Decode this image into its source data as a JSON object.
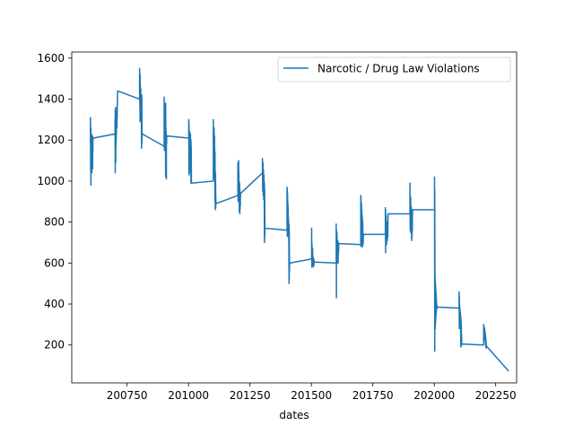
{
  "chart_data": {
    "type": "line",
    "title": "",
    "xlabel": "dates",
    "ylabel": "",
    "xlim": [
      200525,
      202335
    ],
    "ylim": [
      15,
      1630
    ],
    "xticks": [
      200750,
      201000,
      201250,
      201500,
      201750,
      202000,
      202250
    ],
    "yticks": [
      200,
      400,
      600,
      800,
      1000,
      1200,
      1400,
      1600
    ],
    "grid": false,
    "legend_position": "top-right",
    "colors": {
      "series": "#1f77b4"
    },
    "series": [
      {
        "name": "Narcotic / Drug Law Violations",
        "x": [
          200601,
          200601,
          200602,
          200602,
          200603,
          200603,
          200604,
          200604,
          200605,
          200605,
          200606,
          200606,
          200607,
          200607,
          200608,
          200608,
          200609,
          200609,
          200610,
          200610,
          200611,
          200611,
          200612,
          200701,
          200701,
          200702,
          200702,
          200703,
          200703,
          200704,
          200704,
          200705,
          200705,
          200706,
          200706,
          200707,
          200707,
          200708,
          200708,
          200709,
          200709,
          200710,
          200710,
          200711,
          200711,
          200712,
          200801,
          200801,
          200802,
          200802,
          200803,
          200803,
          200804,
          200804,
          200805,
          200805,
          200806,
          200806,
          200807,
          200807,
          200808,
          200808,
          200809,
          200809,
          200810,
          200810,
          200811,
          200811,
          200812,
          200901,
          200901,
          200902,
          200902,
          200903,
          200903,
          200904,
          200904,
          200905,
          200905,
          200906,
          200906,
          200907,
          200907,
          200908,
          200908,
          200909,
          200909,
          200910,
          200910,
          200911,
          200911,
          200912,
          201001,
          201001,
          201002,
          201002,
          201003,
          201003,
          201004,
          201004,
          201005,
          201005,
          201006,
          201006,
          201007,
          201007,
          201008,
          201008,
          201009,
          201009,
          201010,
          201010,
          201011,
          201011,
          201012,
          201101,
          201101,
          201102,
          201102,
          201103,
          201103,
          201104,
          201104,
          201105,
          201105,
          201106,
          201106,
          201107,
          201107,
          201108,
          201108,
          201109,
          201109,
          201110,
          201110,
          201111,
          201111,
          201112,
          201201,
          201201,
          201202,
          201202,
          201203,
          201203,
          201204,
          201204,
          201205,
          201205,
          201206,
          201206,
          201207,
          201207,
          201208,
          201208,
          201209,
          201209,
          201210,
          201210,
          201211,
          201211,
          201212,
          201301,
          201301,
          201302,
          201302,
          201303,
          201303,
          201304,
          201304,
          201305,
          201305,
          201306,
          201306,
          201307,
          201307,
          201308,
          201308,
          201309,
          201309,
          201310,
          201310,
          201311,
          201311,
          201312,
          201401,
          201401,
          201402,
          201402,
          201403,
          201403,
          201404,
          201404,
          201405,
          201405,
          201406,
          201406,
          201407,
          201407,
          201408,
          201408,
          201409,
          201409,
          201410,
          201410,
          201411,
          201411,
          201412,
          201501,
          201501,
          201502,
          201502,
          201503,
          201503,
          201504,
          201504,
          201505,
          201505,
          201506,
          201506,
          201507,
          201507,
          201508,
          201508,
          201509,
          201509,
          201510,
          201510,
          201511,
          201511,
          201512,
          201601,
          201601,
          201602,
          201602,
          201603,
          201603,
          201604,
          201604,
          201605,
          201605,
          201606,
          201606,
          201607,
          201607,
          201608,
          201608,
          201609,
          201609,
          201610,
          201610,
          201611,
          201611,
          201612,
          201701,
          201701,
          201702,
          201702,
          201703,
          201703,
          201704,
          201704,
          201705,
          201705,
          201706,
          201706,
          201707,
          201707,
          201708,
          201708,
          201709,
          201709,
          201710,
          201710,
          201711,
          201711,
          201712,
          201801,
          201801,
          201802,
          201802,
          201803,
          201803,
          201804,
          201804,
          201805,
          201805,
          201806,
          201806,
          201807,
          201807,
          201808,
          201808,
          201809,
          201809,
          201810,
          201810,
          201811,
          201811,
          201812,
          201901,
          201901,
          201902,
          201902,
          201903,
          201903,
          201904,
          201904,
          201905,
          201905,
          201906,
          201906,
          201907,
          201907,
          201908,
          201908,
          201909,
          201909,
          201910,
          201910,
          201911,
          201911,
          201912,
          202001,
          202001,
          202002,
          202002,
          202003,
          202003,
          202004,
          202004,
          202005,
          202005,
          202006,
          202006,
          202007,
          202007,
          202008,
          202008,
          202009,
          202009,
          202010,
          202010,
          202011,
          202011,
          202012,
          202101,
          202101,
          202102,
          202102,
          202103,
          202103,
          202104,
          202104,
          202105,
          202105,
          202106,
          202106,
          202107,
          202107,
          202108,
          202108,
          202109,
          202109,
          202110,
          202110,
          202111,
          202111,
          202112,
          202201,
          202201,
          202202,
          202202,
          202203,
          202203,
          202204,
          202204,
          202205,
          202205,
          202206,
          202206,
          202207,
          202207,
          202208,
          202208,
          202209,
          202209,
          202210,
          202210,
          202211,
          202211,
          202212,
          202301
        ],
        "y": [
          1190,
          1310,
          1050,
          1220,
          980,
          1260,
          1150,
          1180,
          1080,
          1230,
          1120,
          1200,
          1040,
          1210,
          1130,
          1170,
          1100,
          1200,
          1060,
          1220,
          1140,
          1190,
          1210,
          1230,
          1300,
          1040,
          1350,
          1180,
          1280,
          1090,
          1360,
          1170,
          1320,
          1200,
          1290,
          1230,
          1340,
          1280,
          1320,
          1260,
          1300,
          1310,
          1350,
          1390,
          1420,
          1440,
          1400,
          1550,
          1370,
          1490,
          1290,
          1520,
          1350,
          1470,
          1380,
          1430,
          1410,
          1450,
          1340,
          1420,
          1360,
          1400,
          1160,
          1410,
          1180,
          1420,
          1200,
          1240,
          1230,
          1170,
          1410,
          1150,
          1380,
          1200,
          1350,
          1260,
          1310,
          1180,
          1370,
          1230,
          1300,
          1020,
          1380,
          1170,
          1260,
          1120,
          1240,
          1010,
          1220,
          1180,
          1200,
          1220,
          1210,
          1300,
          1030,
          1290,
          1080,
          1250,
          1120,
          1220,
          1060,
          1240,
          1150,
          1190,
          1100,
          1200,
          1040,
          1230,
          1120,
          1180,
          990,
          1200,
          1130,
          1170,
          990,
          1000,
          1300,
          1010,
          1240,
          1120,
          1210,
          1050,
          1260,
          1100,
          1180,
          1030,
          1220,
          1080,
          1150,
          900,
          1140,
          860,
          1000,
          880,
          1040,
          870,
          920,
          890,
          930,
          1090,
          900,
          1060,
          950,
          1080,
          920,
          1100,
          960,
          1040,
          900,
          1000,
          850,
          950,
          870,
          990,
          840,
          960,
          860,
          930,
          880,
          900,
          940,
          1040,
          1110,
          950,
          1080,
          1000,
          1090,
          930,
          1060,
          980,
          1050,
          910,
          1010,
          950,
          1030,
          920,
          1000,
          700,
          990,
          720,
          960,
          740,
          760,
          770,
          760,
          970,
          730,
          960,
          780,
          940,
          750,
          900,
          760,
          880,
          800,
          830,
          770,
          810,
          700,
          780,
          500,
          790,
          520,
          760,
          560,
          580,
          600,
          620,
          770,
          580,
          700,
          650,
          680,
          600,
          650,
          640,
          670,
          590,
          620,
          610,
          630,
          580,
          600,
          590,
          610,
          600,
          620,
          590,
          610,
          605,
          600,
          790,
          430,
          760,
          640,
          720,
          600,
          750,
          650,
          700,
          610,
          690,
          630,
          710,
          640,
          700,
          600,
          700,
          640,
          700,
          660,
          690,
          695,
          690,
          930,
          680,
          920,
          790,
          880,
          700,
          890,
          760,
          860,
          690,
          840,
          720,
          830,
          680,
          810,
          680,
          800,
          690,
          740,
          700,
          720,
          740,
          740,
          870,
          650,
          860,
          790,
          820,
          700,
          830,
          760,
          800,
          690,
          780,
          730,
          790,
          740,
          800,
          710,
          760,
          720,
          750,
          730,
          750,
          840,
          840,
          990,
          760,
          930,
          840,
          900,
          750,
          920,
          800,
          880,
          790,
          860,
          810,
          870,
          710,
          840,
          720,
          820,
          740,
          800,
          760,
          820,
          860,
          860,
          1020,
          170,
          960,
          340,
          550,
          280,
          520,
          300,
          500,
          320,
          480,
          340,
          460,
          360,
          440,
          370,
          420,
          375,
          400,
          380,
          390,
          385,
          380,
          460,
          280,
          440,
          330,
          400,
          290,
          380,
          320,
          370,
          300,
          360,
          310,
          350,
          190,
          340,
          200,
          320,
          195,
          300,
          200,
          250,
          205,
          200,
          300,
          230,
          290,
          270,
          280,
          250,
          285,
          240,
          280,
          225,
          270,
          230,
          260,
          210,
          250,
          200,
          240,
          190,
          230,
          185,
          215,
          195,
          75
        ]
      }
    ]
  }
}
